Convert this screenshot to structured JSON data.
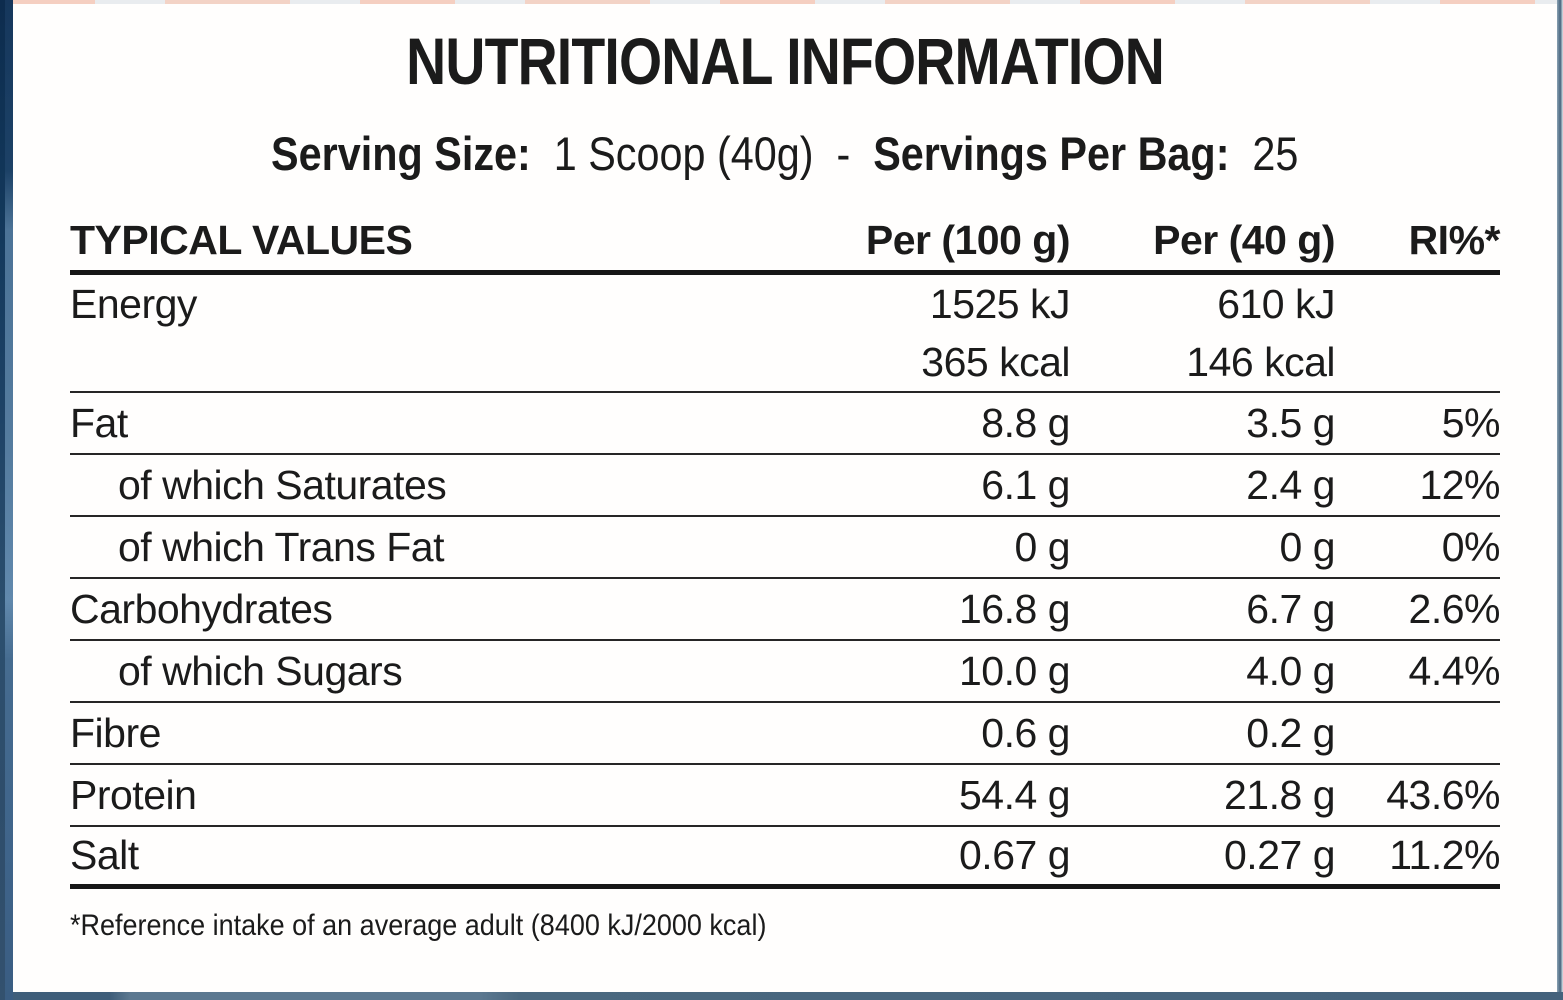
{
  "page": {
    "title": "NUTRITIONAL INFORMATION",
    "serving_line": {
      "serving_size_label": "Serving Size:",
      "serving_size_value": "1 Scoop (40g)",
      "separator": "-",
      "servings_label": "Servings Per Bag:",
      "servings_value": "25"
    },
    "footnote": "*Reference intake of an average adult (8400 kJ/2000 kcal)"
  },
  "table": {
    "headers": {
      "col_values": "TYPICAL VALUES",
      "col_per100": "Per (100 g)",
      "col_per40": "Per (40 g)",
      "col_ri": "RI%*"
    },
    "rows": [
      {
        "label": "Energy",
        "per100": "1525 kJ",
        "per40": "610 kJ",
        "ri": ""
      },
      {
        "label": "",
        "per100": "365 kcal",
        "per40": "146 kcal",
        "ri": ""
      },
      {
        "label": "Fat",
        "per100": "8.8 g",
        "per40": "3.5 g",
        "ri": "5%"
      },
      {
        "label": "of which Saturates",
        "per100": "6.1 g",
        "per40": "2.4 g",
        "ri": "12%"
      },
      {
        "label": "of which Trans Fat",
        "per100": "0 g",
        "per40": "0 g",
        "ri": "0%"
      },
      {
        "label": "Carbohydrates",
        "per100": "16.8 g",
        "per40": "6.7 g",
        "ri": "2.6%"
      },
      {
        "label": "of which Sugars",
        "per100": "10.0 g",
        "per40": "4.0 g",
        "ri": "4.4%"
      },
      {
        "label": "Fibre",
        "per100": "0.6 g",
        "per40": "0.2 g",
        "ri": ""
      },
      {
        "label": "Protein",
        "per100": "54.4 g",
        "per40": "21.8 g",
        "ri": "43.6%"
      },
      {
        "label": "Salt",
        "per100": "0.67 g",
        "per40": "0.27 g",
        "ri": "11.2%"
      }
    ]
  },
  "colors": {
    "text": "#1b1b1b",
    "rule_thick": "#161616",
    "rule_thin": "#262626",
    "label_background": "#fffefd",
    "edge_navy": "#12375a",
    "edge_steel": "#557c9f",
    "edge_slate": "#47657e",
    "edge_salmon": "#f5cfc1",
    "edge_lightgray": "#e9ecef"
  }
}
